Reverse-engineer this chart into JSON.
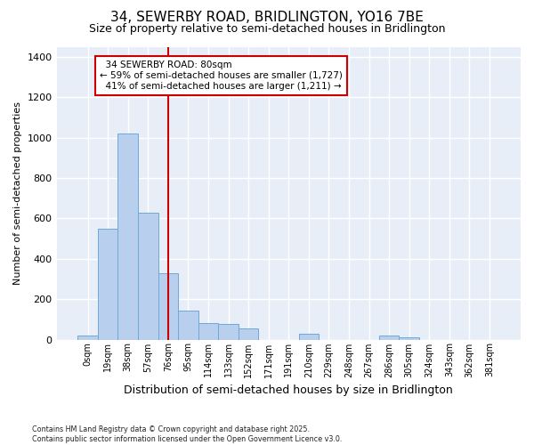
{
  "title_line1": "34, SEWERBY ROAD, BRIDLINGTON, YO16 7BE",
  "title_line2": "Size of property relative to semi-detached houses in Bridlington",
  "xlabel": "Distribution of semi-detached houses by size in Bridlington",
  "ylabel": "Number of semi-detached properties",
  "footnote": "Contains HM Land Registry data © Crown copyright and database right 2025.\nContains public sector information licensed under the Open Government Licence v3.0.",
  "bar_labels": [
    "0sqm",
    "19sqm",
    "38sqm",
    "57sqm",
    "76sqm",
    "95sqm",
    "114sqm",
    "133sqm",
    "152sqm",
    "171sqm",
    "191sqm",
    "210sqm",
    "229sqm",
    "248sqm",
    "267sqm",
    "286sqm",
    "305sqm",
    "324sqm",
    "343sqm",
    "362sqm",
    "381sqm"
  ],
  "bar_values": [
    20,
    550,
    1020,
    630,
    330,
    145,
    83,
    75,
    55,
    0,
    0,
    27,
    0,
    0,
    0,
    20,
    10,
    0,
    0,
    0,
    0
  ],
  "bar_color": "#b8d0ee",
  "bar_edge_color": "#6fa8d8",
  "property_label": "34 SEWERBY ROAD: 80sqm",
  "pct_smaller": 59,
  "n_smaller": 1727,
  "pct_larger": 41,
  "n_larger": 1211,
  "vline_x": 4.0,
  "vline_color": "#cc0000",
  "annotation_box_color": "#cc0000",
  "ylim": [
    0,
    1450
  ],
  "yticks": [
    0,
    200,
    400,
    600,
    800,
    1000,
    1200,
    1400
  ],
  "bg_color": "#ffffff",
  "grid_color": "#d0dce8",
  "title_fontsize": 11,
  "subtitle_fontsize": 9
}
